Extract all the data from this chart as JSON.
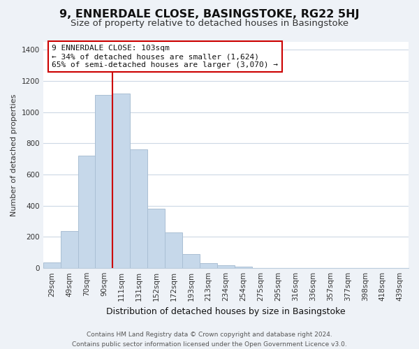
{
  "title": "9, ENNERDALE CLOSE, BASINGSTOKE, RG22 5HJ",
  "subtitle": "Size of property relative to detached houses in Basingstoke",
  "xlabel": "Distribution of detached houses by size in Basingstoke",
  "ylabel": "Number of detached properties",
  "footer_line1": "Contains HM Land Registry data © Crown copyright and database right 2024.",
  "footer_line2": "Contains public sector information licensed under the Open Government Licence v3.0.",
  "bar_labels": [
    "29sqm",
    "49sqm",
    "70sqm",
    "90sqm",
    "111sqm",
    "131sqm",
    "152sqm",
    "172sqm",
    "193sqm",
    "213sqm",
    "234sqm",
    "254sqm",
    "275sqm",
    "295sqm",
    "316sqm",
    "336sqm",
    "357sqm",
    "377sqm",
    "398sqm",
    "418sqm",
    "439sqm"
  ],
  "bar_values": [
    35,
    240,
    720,
    1110,
    1120,
    760,
    380,
    230,
    90,
    30,
    20,
    10,
    0,
    0,
    0,
    0,
    0,
    0,
    0,
    0,
    0
  ],
  "bar_color": "#c6d8ea",
  "bar_edgecolor": "#aabfd4",
  "vline_color": "#cc0000",
  "vline_x_index": 4,
  "annotation_text_line1": "9 ENNERDALE CLOSE: 103sqm",
  "annotation_text_line2": "← 34% of detached houses are smaller (1,624)",
  "annotation_text_line3": "65% of semi-detached houses are larger (3,070) →",
  "annotation_box_edgecolor": "#cc0000",
  "annotation_box_facecolor": "#ffffff",
  "ylim": [
    0,
    1450
  ],
  "yticks": [
    0,
    200,
    400,
    600,
    800,
    1000,
    1200,
    1400
  ],
  "background_color": "#eef2f7",
  "plot_background_color": "#ffffff",
  "grid_color": "#ccd8e4",
  "title_fontsize": 11.5,
  "subtitle_fontsize": 9.5,
  "xlabel_fontsize": 9,
  "ylabel_fontsize": 8,
  "tick_fontsize": 7.5,
  "footer_fontsize": 6.5,
  "annotation_fontsize": 8
}
